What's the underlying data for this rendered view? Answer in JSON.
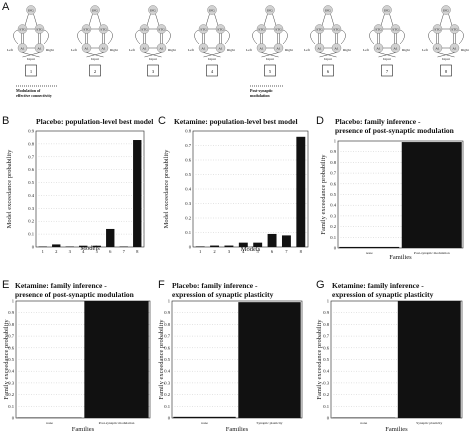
{
  "panel_labels": {
    "A": "A",
    "B": "B",
    "C": "C",
    "D": "D",
    "E": "E",
    "F": "F",
    "G": "G"
  },
  "diagram": {
    "node_ifg": "IFG",
    "node_stg": "STG",
    "node_a1": "A1",
    "side_left": "Left",
    "side_right": "Right",
    "input_label": "Input",
    "model_numbers": [
      "1",
      "2",
      "3",
      "4",
      "5",
      "6",
      "7",
      "8"
    ],
    "caption_modulation": [
      "Modulation of",
      "effective connectivity"
    ],
    "caption_postsynaptic": [
      "Post-synaptic",
      "modulation"
    ]
  },
  "chart_data": [
    {
      "id": "B",
      "type": "bar",
      "title": "Placebo: population-level best model",
      "xlabel": "Models",
      "ylabel": "Model exceedance probability",
      "categories": [
        "1",
        "2",
        "3",
        "4",
        "5",
        "6",
        "7",
        "8"
      ],
      "values": [
        0.0,
        0.02,
        0.0,
        0.01,
        0.01,
        0.14,
        0.0,
        0.83
      ],
      "ylim": [
        0,
        0.9
      ],
      "yticks": [
        "0",
        "0.1",
        "0.2",
        "0.3",
        "0.4",
        "0.5",
        "0.6",
        "0.7",
        "0.8",
        "0.9"
      ],
      "grid": true
    },
    {
      "id": "C",
      "type": "bar",
      "title": "Ketamine: population-level best model",
      "xlabel": "Models",
      "ylabel": "Model exceedance probability",
      "categories": [
        "1",
        "2",
        "3",
        "4",
        "5",
        "6",
        "7",
        "8"
      ],
      "values": [
        0.0,
        0.01,
        0.01,
        0.03,
        0.03,
        0.09,
        0.08,
        0.76
      ],
      "ylim": [
        0,
        0.8
      ],
      "yticks": [
        "0",
        "0.1",
        "0.2",
        "0.3",
        "0.4",
        "0.5",
        "0.6",
        "0.7",
        "0.8"
      ],
      "grid": true
    },
    {
      "id": "D",
      "type": "bar",
      "title": [
        "Placebo:  family inference -",
        "presence of post-synaptic modulation"
      ],
      "xlabel": "Families",
      "ylabel": "Family exceedance probability",
      "categories": [
        "none",
        "Post-synaptic modulation"
      ],
      "values": [
        0.01,
        0.99
      ],
      "ylim": [
        0,
        1
      ],
      "yticks": [
        "0",
        "0.1",
        "0.2",
        "0.3",
        "0.4",
        "0.5",
        "0.6",
        "0.7",
        "0.8",
        "0.9",
        "1"
      ],
      "grid": true
    },
    {
      "id": "E",
      "type": "bar",
      "title": [
        "Ketamine: family inference -",
        "presence of post-synaptic modulation"
      ],
      "xlabel": "Families",
      "ylabel": "Family exceedance probability",
      "categories": [
        "none",
        "Post-synaptic  modulation"
      ],
      "values": [
        0.0,
        1.0
      ],
      "ylim": [
        0,
        1
      ],
      "yticks": [
        "0",
        "0.1",
        "0.2",
        "0.3",
        "0.4",
        "0.5",
        "0.6",
        "0.7",
        "0.8",
        "0.9",
        "1"
      ],
      "grid": true
    },
    {
      "id": "F",
      "type": "bar",
      "title": [
        "Placebo: family inference -",
        "expression of synaptic plasticity"
      ],
      "xlabel": "Families",
      "ylabel": "Family exceedance probability",
      "categories": [
        "none",
        "Synaptic plasticity"
      ],
      "values": [
        0.01,
        0.99
      ],
      "ylim": [
        0,
        1
      ],
      "yticks": [
        "0",
        "0.1",
        "0.2",
        "0.3",
        "0.4",
        "0.5",
        "0.6",
        "0.7",
        "0.8",
        "0.9",
        "1"
      ],
      "grid": true
    },
    {
      "id": "G",
      "type": "bar",
      "title": [
        "Ketamine: family inference -",
        "expression of synaptic plasticity"
      ],
      "xlabel": "Families",
      "ylabel": "Family exceedance probability",
      "categories": [
        "none",
        "Synaptic plasticity"
      ],
      "values": [
        0.0,
        1.0
      ],
      "ylim": [
        0,
        1
      ],
      "yticks": [
        "0",
        "0.1",
        "0.2",
        "0.3",
        "0.4",
        "0.5",
        "0.6",
        "0.7",
        "0.8",
        "0.9",
        "1"
      ],
      "grid": true
    }
  ]
}
